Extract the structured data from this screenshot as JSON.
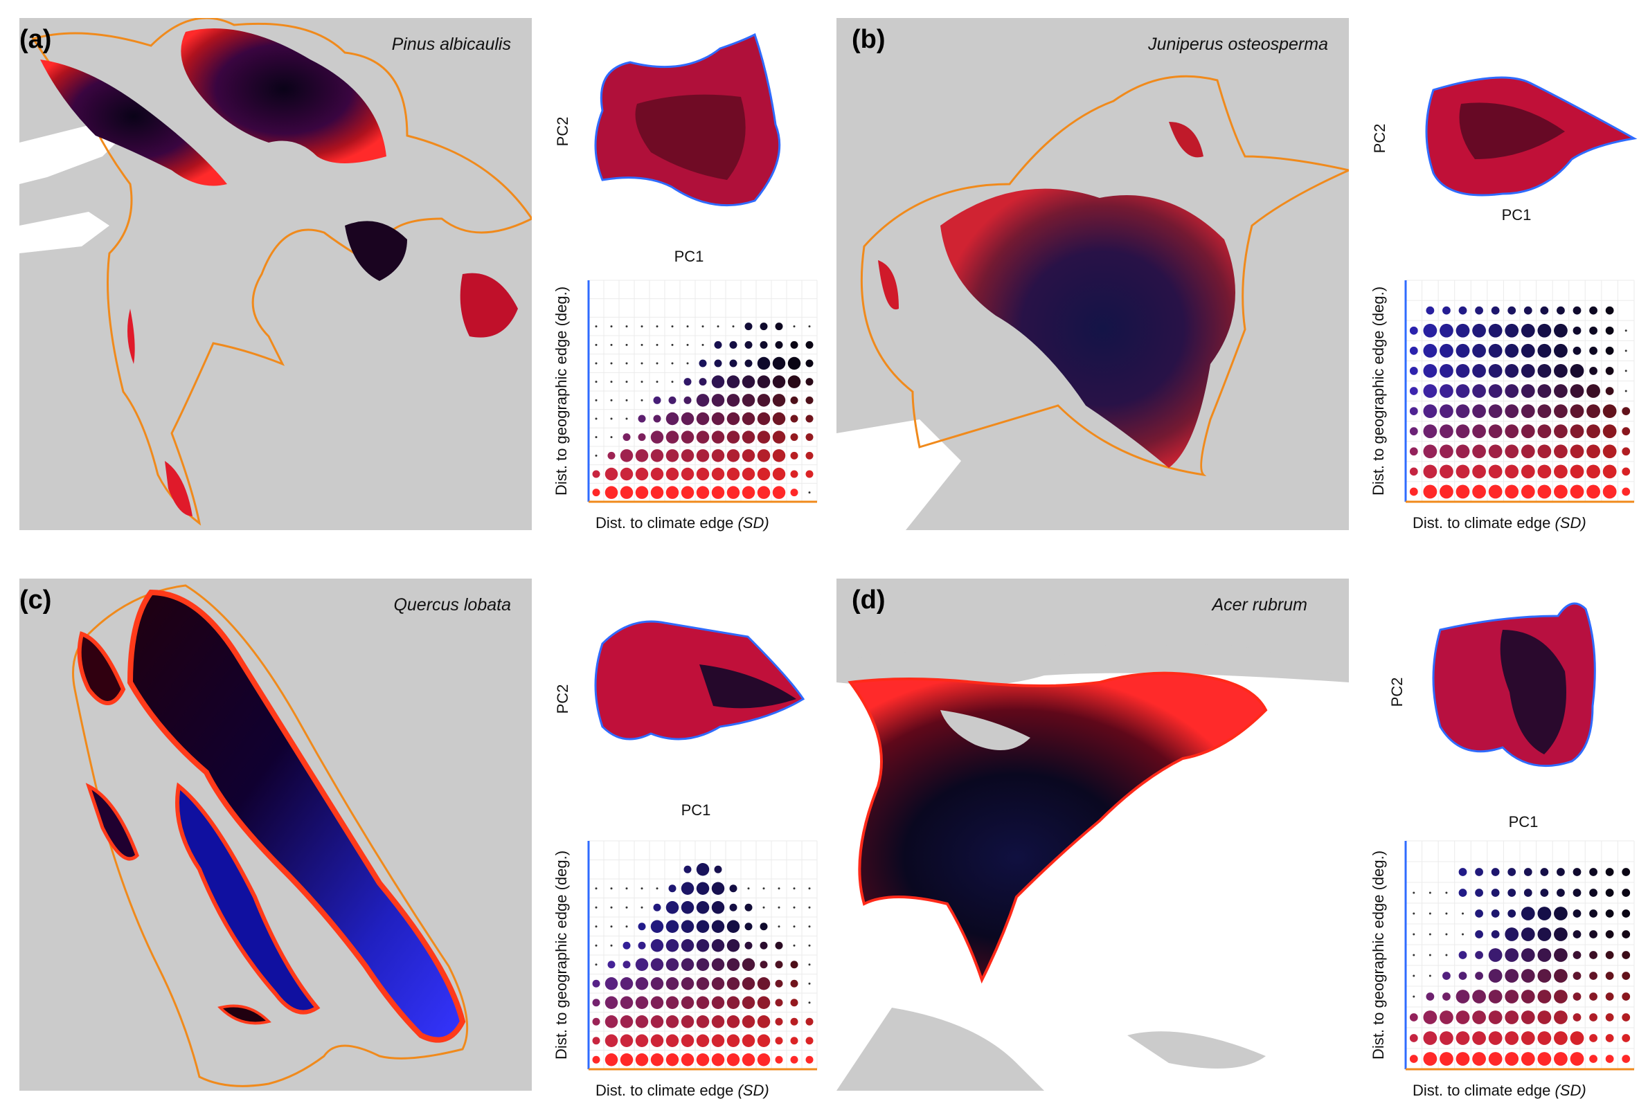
{
  "panels": [
    {
      "id": "a",
      "label": "(a)",
      "species": "Pinus albicaulis"
    },
    {
      "id": "b",
      "label": "(b)",
      "species": "Juniperus osteosperma"
    },
    {
      "id": "c",
      "label": "(c)",
      "species": "Quercus lobata"
    },
    {
      "id": "d",
      "label": "(d)",
      "species": "Acer rubrum"
    }
  ],
  "pca_labels": {
    "x": "PC1",
    "y": "PC2"
  },
  "dot_labels": {
    "x": "Dist. to climate edge",
    "x_unit": "(SD)",
    "y": "Dist. to geographic edge (deg.)"
  },
  "colors": {
    "edge": "#f08a1c",
    "pca_outline": "#2f6bff",
    "map_bg": "#cbcbcb",
    "land_white": "#ffffff",
    "near_edge": "#ff2020",
    "interior_dark": "#000000",
    "geo_interior": "#3030ff"
  },
  "chart_data": [
    {
      "panel": "a",
      "type": "scatter",
      "title": "Pinus albicaulis",
      "xlabel": "Dist. to climate edge (SD)",
      "ylabel": "Dist. to geographic edge (deg.)",
      "grid": true,
      "rows": [
        "...............",
        "..............",
        "..........ooo..",
        "........ooooooo",
        ".......ooooOOOo",
        "......ooOOOOOOo",
        "....oooOOOOOOoo",
        "...ooOOOOOOOOoo",
        "..ooOOOOOOOOOoo",
        ".oOOOOOOOOOOOoo",
        "oOOOOOOOOOOOOoo",
        "oOOOOOOOOOOOOo."
      ]
    },
    {
      "panel": "b",
      "type": "scatter",
      "title": "Juniperus osteosperma",
      "xlabel": "Dist. to climate edge (SD)",
      "ylabel": "Dist. to geographic edge (deg.)",
      "grid": true,
      "rows": [
        "..............",
        ".oooooooooooo.",
        "oOOOOOOOOOooo.",
        "oOOOOOOOOOooo.",
        "oOOOOOOOOOOoo.",
        "oOOOOOOOOOOOo.",
        "oOOOOOOOOOOOOo",
        "oOOOOOOOOOOOOo",
        "oOOOOOOOOOOOOo",
        "oOOOOOOOOOOOOo",
        "oOOOOOOOOOOOOo"
      ]
    },
    {
      "panel": "c",
      "type": "scatter",
      "title": "Quercus lobata",
      "xlabel": "Dist. to climate edge (SD)",
      "ylabel": "Dist. to geographic edge (deg.)",
      "grid": true,
      "rows": [
        "...............",
        "......oOo......",
        ".....oOOOo.....",
        "....oOOOOoo....",
        "...oOOOOOOoo...",
        "..ooOOOOOOooo..",
        ".ooOOOOOOOOooo.",
        "oOOOOOOOOOOOoo.",
        "oOOOOOOOOOOOoo.",
        "oOOOOOOOOOOOooo",
        "oOOOOOOOOOOOooo",
        "oOOOOOOOOOOOooo"
      ]
    },
    {
      "panel": "d",
      "type": "scatter",
      "title": "Acer rubrum",
      "xlabel": "Dist. to climate edge (SD)",
      "ylabel": "Dist. to geographic edge (deg.)",
      "grid": true,
      "rows": [
        "..............",
        "...ooooooooooo",
        "...ooooooooooo",
        "....oooOOOoooo",
        "....ooOOOOoooo",
        "...ooOOOOOoooo",
        "..oooOOOOOoooo",
        ".ooOOOOOOOoooo",
        "oOOOOOOOOOoooo",
        "oOOOOOOOOOOooo",
        "oOOOOOOOOOOooo"
      ]
    }
  ]
}
